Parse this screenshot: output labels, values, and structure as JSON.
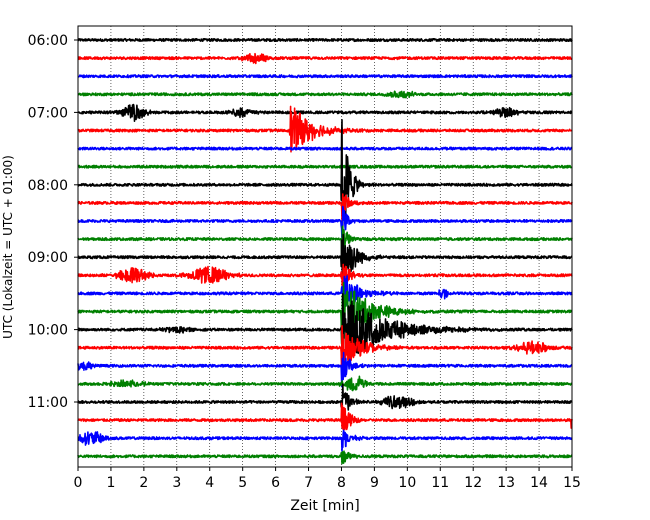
{
  "chart_data": {
    "type": "line",
    "title": "",
    "xlabel": "Zeit  [min]",
    "ylabel": "UTC (Lokalzeit = UTC + 01:00)",
    "xlim": [
      0,
      15
    ],
    "xticks": [
      "0",
      "1",
      "2",
      "3",
      "4",
      "5",
      "6",
      "7",
      "8",
      "9",
      "10",
      "11",
      "12",
      "13",
      "14",
      "15"
    ],
    "grid": "vertical dotted",
    "trace_colors": [
      "#000000",
      "#ff0000",
      "#0000ff",
      "#008000"
    ],
    "row_interval_minutes": 15,
    "yticks": [
      {
        "label": "06:00",
        "row": 0
      },
      {
        "label": "07:00",
        "row": 4
      },
      {
        "label": "08:00",
        "row": 8
      },
      {
        "label": "09:00",
        "row": 12
      },
      {
        "label": "10:00",
        "row": 16
      },
      {
        "label": "11:00",
        "row": 20
      }
    ],
    "rows": 24,
    "events": [
      {
        "row": 1,
        "t": 5.4,
        "amp": 0.25,
        "dur": 0.6,
        "kind": "burst"
      },
      {
        "row": 3,
        "t": 9.8,
        "amp": 0.2,
        "dur": 0.6,
        "kind": "burst"
      },
      {
        "row": 4,
        "t": 1.7,
        "amp": 0.5,
        "dur": 0.5,
        "kind": "burst"
      },
      {
        "row": 4,
        "t": 5.0,
        "amp": 0.25,
        "dur": 0.5,
        "kind": "burst"
      },
      {
        "row": 4,
        "t": 13.0,
        "amp": 0.25,
        "dur": 0.6,
        "kind": "burst"
      },
      {
        "row": 5,
        "t": 6.45,
        "amp": 1.5,
        "dur": 0.6,
        "kind": "quake"
      },
      {
        "row": 8,
        "t": 8.0,
        "amp": 4.3,
        "dur": 0.2,
        "kind": "quake"
      },
      {
        "row": 9,
        "t": 8.0,
        "amp": 1.2,
        "dur": 0.15,
        "kind": "quake"
      },
      {
        "row": 10,
        "t": 8.0,
        "amp": 1.2,
        "dur": 0.15,
        "kind": "quake"
      },
      {
        "row": 11,
        "t": 8.0,
        "amp": 1.2,
        "dur": 0.15,
        "kind": "quake"
      },
      {
        "row": 12,
        "t": 8.0,
        "amp": 2.4,
        "dur": 0.3,
        "kind": "quake"
      },
      {
        "row": 13,
        "t": 1.7,
        "amp": 0.45,
        "dur": 0.7,
        "kind": "burst"
      },
      {
        "row": 13,
        "t": 4.0,
        "amp": 0.45,
        "dur": 0.9,
        "kind": "burst"
      },
      {
        "row": 13,
        "t": 8.0,
        "amp": 1.2,
        "dur": 0.2,
        "kind": "quake"
      },
      {
        "row": 14,
        "t": 8.0,
        "amp": 1.5,
        "dur": 0.4,
        "kind": "quake"
      },
      {
        "row": 14,
        "t": 11.1,
        "amp": 0.35,
        "dur": 0.2,
        "kind": "burst"
      },
      {
        "row": 15,
        "t": 8.0,
        "amp": 2.0,
        "dur": 0.7,
        "kind": "quake"
      },
      {
        "row": 16,
        "t": 8.0,
        "amp": 2.2,
        "dur": 1.1,
        "kind": "quake"
      },
      {
        "row": 16,
        "t": 3.0,
        "amp": 0.2,
        "dur": 0.6,
        "kind": "burst"
      },
      {
        "row": 17,
        "t": 8.0,
        "amp": 1.4,
        "dur": 0.5,
        "kind": "quake"
      },
      {
        "row": 17,
        "t": 13.8,
        "amp": 0.35,
        "dur": 0.8,
        "kind": "burst"
      },
      {
        "row": 18,
        "t": 8.0,
        "amp": 1.2,
        "dur": 0.2,
        "kind": "quake"
      },
      {
        "row": 18,
        "t": 0.2,
        "amp": 0.25,
        "dur": 0.4,
        "kind": "burst"
      },
      {
        "row": 19,
        "t": 8.4,
        "amp": 0.45,
        "dur": 0.5,
        "kind": "burst"
      },
      {
        "row": 19,
        "t": 1.5,
        "amp": 0.2,
        "dur": 0.7,
        "kind": "burst"
      },
      {
        "row": 20,
        "t": 8.0,
        "amp": 1.2,
        "dur": 0.2,
        "kind": "quake"
      },
      {
        "row": 20,
        "t": 9.7,
        "amp": 0.35,
        "dur": 0.7,
        "kind": "burst"
      },
      {
        "row": 21,
        "t": 8.0,
        "amp": 1.2,
        "dur": 0.2,
        "kind": "quake"
      },
      {
        "row": 21,
        "t": 15.0,
        "amp": 0.6,
        "dur": 0.05,
        "kind": "spike"
      },
      {
        "row": 22,
        "t": 8.0,
        "amp": 0.8,
        "dur": 0.2,
        "kind": "quake"
      },
      {
        "row": 22,
        "t": 0.4,
        "amp": 0.4,
        "dur": 0.6,
        "kind": "burst"
      },
      {
        "row": 23,
        "t": 8.0,
        "amp": 0.5,
        "dur": 0.2,
        "kind": "quake"
      }
    ]
  }
}
